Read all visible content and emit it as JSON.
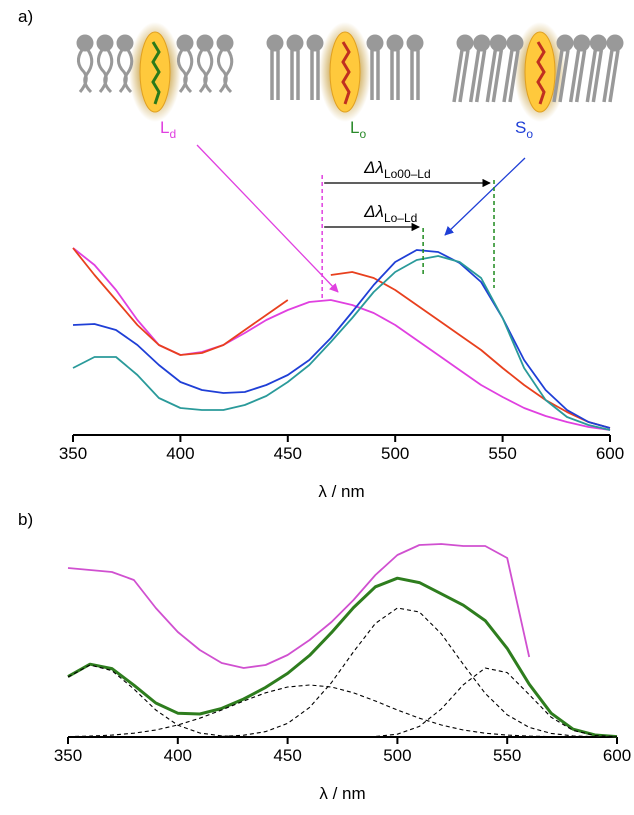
{
  "chart_data": [
    {
      "type": "line",
      "panel_label": "a)",
      "xlabel": "λ / nm",
      "xlim": [
        350,
        600
      ],
      "xticks": [
        350,
        400,
        450,
        500,
        550,
        600
      ],
      "ylim": [
        0,
        100
      ],
      "x": [
        350,
        360,
        370,
        380,
        390,
        400,
        410,
        420,
        430,
        440,
        450,
        460,
        470,
        480,
        490,
        500,
        510,
        520,
        530,
        540,
        550,
        560,
        570,
        580,
        590,
        600
      ],
      "series": [
        {
          "color": "#e040e0",
          "values": [
            93.5,
            85,
            72.5,
            57.5,
            45,
            40,
            41.5,
            45,
            51,
            57.5,
            62.5,
            66.5,
            67.5,
            65,
            61,
            55,
            47.5,
            40,
            32.5,
            25,
            19,
            13.5,
            9.5,
            6.5,
            4,
            2.5
          ]
        },
        {
          "color": "#e8401e",
          "values": [
            93.5,
            80,
            67.5,
            55,
            45,
            40,
            41,
            45,
            52.5,
            60,
            67.5,
            null,
            80,
            81.5,
            78.5,
            72.5,
            65,
            57.5,
            50,
            42.5,
            33.5,
            25,
            17.5,
            11.5,
            6.5,
            3.5
          ]
        },
        {
          "color": "#1f3fd6",
          "values": [
            55,
            55.5,
            52.5,
            45,
            35,
            26.5,
            22.5,
            21,
            21.5,
            25,
            30,
            37.5,
            48.5,
            61.5,
            75,
            86.5,
            92.5,
            91.5,
            86,
            76.5,
            58.5,
            37.5,
            22.5,
            12.5,
            6.5,
            3.5
          ]
        },
        {
          "color": "#2a9a9a",
          "values": [
            33.5,
            39,
            39,
            30,
            18.5,
            13.5,
            12.5,
            12.5,
            15,
            19.5,
            26.5,
            35,
            46.5,
            58.5,
            71.5,
            81.5,
            87.5,
            89.5,
            86.5,
            78.5,
            58.5,
            33.5,
            17.5,
            9,
            5,
            2.5
          ]
        }
      ],
      "annotations": [
        {
          "text": "L",
          "sub": "d",
          "color": "#e040e0"
        },
        {
          "text": "L",
          "sub": "o",
          "color": "#2a8a2a"
        },
        {
          "text": "S",
          "sub": "o",
          "color": "#1f3fd6"
        }
      ],
      "markers": [
        {
          "x": 466,
          "color": "#e040e0"
        },
        {
          "x": 513,
          "color": "#1e8a1e"
        },
        {
          "x": 546,
          "color": "#1e8a1e"
        }
      ],
      "shifts": [
        {
          "from": 466,
          "to": 546,
          "text": "Δλ",
          "sub": "Lo00–Ld"
        },
        {
          "from": 466,
          "to": 513,
          "text": "Δλ",
          "sub": "Lo–Ld"
        }
      ]
    },
    {
      "type": "line",
      "panel_label": "b)",
      "xlabel": "λ / nm",
      "xlim": [
        350,
        600
      ],
      "xticks": [
        350,
        400,
        450,
        500,
        550,
        600
      ],
      "ylim": [
        0,
        100
      ],
      "x": [
        350,
        360,
        370,
        380,
        390,
        400,
        410,
        420,
        430,
        440,
        450,
        460,
        470,
        480,
        490,
        500,
        510,
        520,
        530,
        540,
        550,
        560,
        570,
        580,
        590,
        600
      ],
      "series": [
        {
          "color": "#d050d0",
          "values": [
            84.5,
            83.5,
            82.5,
            78.5,
            64.5,
            52.5,
            43.5,
            37,
            34.5,
            36,
            41,
            48.5,
            57.5,
            68.5,
            81,
            91,
            96,
            96.5,
            95.5,
            95.5,
            89.5,
            40,
            null,
            null,
            null,
            null
          ]
        },
        {
          "color": "#2e7d1e",
          "values": [
            30.2,
            36.4,
            34.2,
            25.9,
            17,
            11.9,
            11.5,
            14.3,
            19,
            24.8,
            31.8,
            40.8,
            52.2,
            64.7,
            75.1,
            79.4,
            77.2,
            71.6,
            65.9,
            58.2,
            44.3,
            26.4,
            11.9,
            3.9,
            1,
            0.2
          ]
        },
        {
          "color": "#000000",
          "dashed": true,
          "values": [
            30,
            36,
            33.2,
            24,
            13.5,
            5.9,
            2,
            0.54,
            0.11,
            0,
            0,
            0,
            0,
            0,
            0,
            0,
            0,
            0,
            0,
            0,
            0,
            0,
            0,
            0,
            0,
            0
          ]
        },
        {
          "color": "#000000",
          "dashed": true,
          "values": [
            0.19,
            0.44,
            0.95,
            1.9,
            3.5,
            6,
            9.4,
            13.5,
            18,
            22.1,
            25,
            26,
            25,
            22.1,
            18,
            13.5,
            9.4,
            6,
            3.5,
            1.9,
            0.95,
            0.44,
            0.19,
            0.07,
            0.03,
            0.01
          ]
        },
        {
          "color": "#000000",
          "dashed": true,
          "values": [
            0,
            0,
            0,
            0,
            0,
            0.01,
            0.06,
            0.26,
            0.92,
            2.7,
            6.8,
            14.8,
            27.2,
            42.6,
            56.8,
            64.5,
            62.5,
            51.6,
            36.3,
            21.8,
            11.1,
            4.8,
            1.8,
            0.57,
            0.15,
            0.03
          ]
        },
        {
          "color": "#000000",
          "dashed": true,
          "values": [
            0,
            0,
            0,
            0,
            0,
            0,
            0,
            0,
            0,
            0,
            0,
            0,
            0,
            0.04,
            0.27,
            1.4,
            5.3,
            14,
            26.1,
            34.5,
            32.2,
            21.2,
            9.9,
            3.3,
            0.77,
            0.13
          ]
        }
      ]
    }
  ]
}
